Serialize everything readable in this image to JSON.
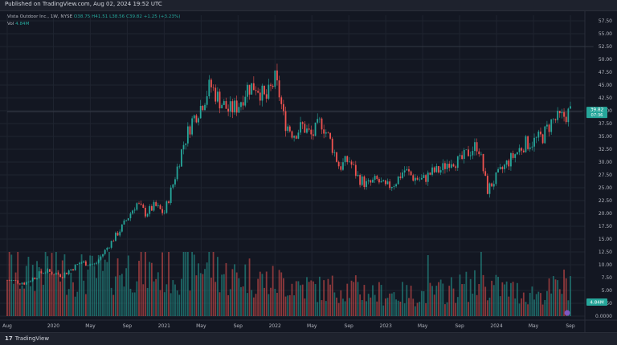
{
  "header": {
    "published": "Published on TradingView.com, Aug 02, 2024 19:52 UTC"
  },
  "legend": {
    "symbol": "Vista Outdoor Inc., 1W, NYSE",
    "ohlc": "O38.75 H41.51 L38.56 C39.82 +1.25 (+3.23%)",
    "volume_label": "Vol",
    "volume_value": "4.84M"
  },
  "price_badge": {
    "price": "39.82",
    "countdown": "07:36"
  },
  "volume_badge": "4.84M",
  "footer": {
    "logo_mark": "17",
    "brand": "TradingView"
  },
  "colors": {
    "up": "#26a69a",
    "down": "#ef5350",
    "up_vol": "#26a69a",
    "down_vol": "#ef5350",
    "background": "#131722",
    "grid": "#1f2430"
  },
  "chart_data": {
    "type": "candlestick",
    "timeframe": "1W",
    "y_axis_ticks": [
      "57.50",
      "55.00",
      "52.50",
      "50.00",
      "47.50",
      "45.00",
      "42.50",
      "40.00",
      "37.50",
      "35.00",
      "32.50",
      "30.00",
      "27.50",
      "25.00",
      "22.50",
      "20.00",
      "17.50",
      "15.00",
      "12.50",
      "10.00",
      "7.50",
      "5.00",
      "2.50",
      "0.0000"
    ],
    "ylim": [
      0,
      58.6
    ],
    "x_axis_ticks": [
      "Aug",
      "2020",
      "May",
      "Sep",
      "2021",
      "May",
      "Sep",
      "2022",
      "May",
      "Sep",
      "2023",
      "May",
      "Sep",
      "2024",
      "May",
      "Sep"
    ],
    "x_tick_months": [
      0,
      5,
      9,
      13,
      17,
      21,
      25,
      29,
      33,
      37,
      41,
      45,
      49,
      53,
      57,
      61
    ],
    "series": [
      {
        "kind": "price_close_path",
        "points": [
          [
            0,
            7.0
          ],
          [
            2,
            6.5
          ],
          [
            4,
            8.8
          ],
          [
            6,
            8.0
          ],
          [
            8,
            10.5
          ],
          [
            9.5,
            10.0
          ],
          [
            10.5,
            12.5
          ],
          [
            11.5,
            15.0
          ],
          [
            12.5,
            17.5
          ],
          [
            13,
            19.0
          ],
          [
            14,
            22.0
          ],
          [
            15,
            20.0
          ],
          [
            16,
            21.5
          ],
          [
            17,
            20.0
          ],
          [
            18,
            26.0
          ],
          [
            19,
            33.0
          ],
          [
            20,
            38.0
          ],
          [
            21,
            41.0
          ],
          [
            22,
            45.0
          ],
          [
            23,
            42.0
          ],
          [
            24,
            40.0
          ],
          [
            25,
            41.0
          ],
          [
            26,
            44.5
          ],
          [
            27,
            45.0
          ],
          [
            28,
            42.0
          ],
          [
            29,
            46.0
          ],
          [
            29.5,
            43.0
          ],
          [
            30,
            38.0
          ],
          [
            31,
            35.5
          ],
          [
            32,
            37.0
          ],
          [
            33,
            35.0
          ],
          [
            34,
            38.0
          ],
          [
            35,
            34.0
          ],
          [
            36,
            29.0
          ],
          [
            37,
            30.5
          ],
          [
            38,
            27.0
          ],
          [
            39,
            25.5
          ],
          [
            40,
            26.5
          ],
          [
            41,
            25.0
          ],
          [
            42,
            26.0
          ],
          [
            43,
            28.5
          ],
          [
            44,
            27.0
          ],
          [
            45,
            26.5
          ],
          [
            46,
            28.0
          ],
          [
            47,
            28.5
          ],
          [
            48,
            30.5
          ],
          [
            49,
            30.0
          ],
          [
            50,
            32.0
          ],
          [
            51,
            33.5
          ],
          [
            52,
            24.5
          ],
          [
            53,
            27.0
          ],
          [
            54,
            29.5
          ],
          [
            55,
            31.5
          ],
          [
            56,
            33.5
          ],
          [
            57,
            34.0
          ],
          [
            58,
            35.0
          ],
          [
            59,
            38.0
          ],
          [
            60,
            38.6
          ],
          [
            61,
            39.82
          ]
        ]
      },
      {
        "kind": "volume_profile_millions",
        "points": [
          [
            0,
            6.5
          ],
          [
            2,
            5.0
          ],
          [
            4,
            7.0
          ],
          [
            6,
            6.0
          ],
          [
            8,
            5.5
          ],
          [
            10,
            5.5
          ],
          [
            12,
            6.0
          ],
          [
            14,
            6.5
          ],
          [
            16,
            5.5
          ],
          [
            18,
            6.0
          ],
          [
            20,
            6.5
          ],
          [
            22,
            7.0
          ],
          [
            24,
            5.0
          ],
          [
            26,
            5.5
          ],
          [
            28,
            4.5
          ],
          [
            30,
            4.5
          ],
          [
            32,
            4.0
          ],
          [
            34,
            3.5
          ],
          [
            36,
            3.8
          ],
          [
            38,
            3.5
          ],
          [
            40,
            3.0
          ],
          [
            42,
            3.0
          ],
          [
            44,
            2.8
          ],
          [
            46,
            3.0
          ],
          [
            48,
            3.5
          ],
          [
            50,
            4.0
          ],
          [
            52,
            4.0
          ],
          [
            54,
            3.5
          ],
          [
            56,
            3.0
          ],
          [
            58,
            3.0
          ],
          [
            60,
            4.0
          ],
          [
            61.5,
            4.84
          ]
        ],
        "spikes": [
          [
            51.3,
            12.5
          ],
          [
            45.5,
            8.0
          ]
        ]
      }
    ],
    "levels": [
      {
        "price": 52.5,
        "start_month": 29.5,
        "end_month": 63.5
      },
      {
        "price": 39.82,
        "start_month": 0,
        "end_month": 62.3
      }
    ]
  }
}
